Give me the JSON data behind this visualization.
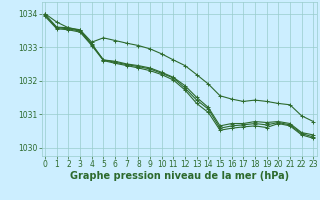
{
  "hours": [
    0,
    1,
    2,
    3,
    4,
    5,
    6,
    7,
    8,
    9,
    10,
    11,
    12,
    13,
    14,
    15,
    16,
    17,
    18,
    19,
    20,
    21,
    22,
    23
  ],
  "line1": [
    1034.0,
    1033.75,
    1033.58,
    1033.52,
    1033.15,
    1033.28,
    1033.2,
    1033.12,
    1033.05,
    1032.95,
    1032.8,
    1032.62,
    1032.45,
    1032.18,
    1031.9,
    1031.55,
    1031.45,
    1031.38,
    1031.42,
    1031.38,
    1031.32,
    1031.28,
    1030.95,
    1030.78
  ],
  "line2": [
    1033.98,
    1033.6,
    1033.58,
    1033.5,
    1033.1,
    1032.62,
    1032.58,
    1032.5,
    1032.45,
    1032.38,
    1032.25,
    1032.1,
    1031.85,
    1031.5,
    1031.2,
    1030.65,
    1030.72,
    1030.72,
    1030.78,
    1030.75,
    1030.78,
    1030.72,
    1030.45,
    1030.38
  ],
  "line3": [
    1033.95,
    1033.58,
    1033.55,
    1033.48,
    1033.08,
    1032.62,
    1032.55,
    1032.48,
    1032.42,
    1032.35,
    1032.22,
    1032.08,
    1031.78,
    1031.42,
    1031.15,
    1030.58,
    1030.65,
    1030.68,
    1030.72,
    1030.68,
    1030.75,
    1030.68,
    1030.42,
    1030.32
  ],
  "line4": [
    1033.92,
    1033.55,
    1033.52,
    1033.45,
    1033.05,
    1032.6,
    1032.52,
    1032.45,
    1032.38,
    1032.3,
    1032.18,
    1032.02,
    1031.72,
    1031.32,
    1031.05,
    1030.52,
    1030.58,
    1030.62,
    1030.65,
    1030.6,
    1030.72,
    1030.65,
    1030.38,
    1030.28
  ],
  "bg_color": "#cceeff",
  "grid_color": "#99cccc",
  "line_color": "#2d6a2d",
  "xlabel": "Graphe pression niveau de la mer (hPa)",
  "ylim": [
    1029.75,
    1034.35
  ],
  "yticks": [
    1030,
    1031,
    1032,
    1033,
    1034
  ],
  "xticks": [
    0,
    1,
    2,
    3,
    4,
    5,
    6,
    7,
    8,
    9,
    10,
    11,
    12,
    13,
    14,
    15,
    16,
    17,
    18,
    19,
    20,
    21,
    22,
    23
  ],
  "marker": "+",
  "marker_size": 3.5,
  "line_width": 0.8,
  "xlabel_fontsize": 7.0,
  "tick_fontsize": 5.5,
  "label_color": "#2d6a2d"
}
